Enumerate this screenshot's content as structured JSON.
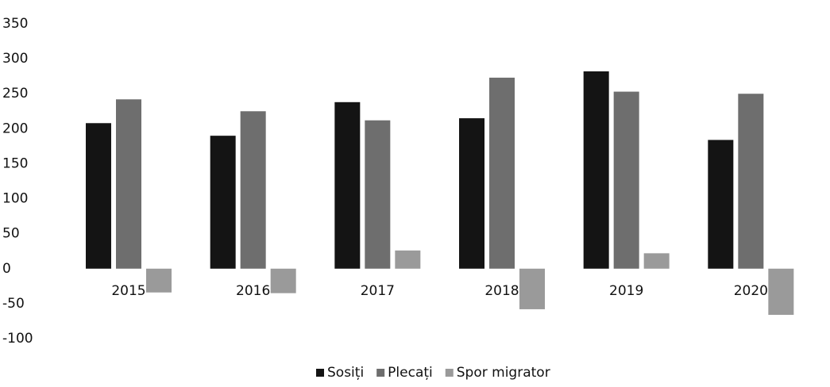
{
  "chart_data": {
    "type": "bar",
    "categories": [
      "2015",
      "2016",
      "2017",
      "2018",
      "2019",
      "2020"
    ],
    "series": [
      {
        "name": "Sosiți",
        "color": "#141414",
        "values": [
          208,
          190,
          238,
          215,
          282,
          184
        ]
      },
      {
        "name": "Plecați",
        "color": "#6e6e6e",
        "values": [
          242,
          225,
          212,
          273,
          253,
          250
        ]
      },
      {
        "name": "Spor migrator",
        "color": "#9a9a9a",
        "values": [
          -34,
          -35,
          26,
          -58,
          22,
          -66
        ]
      }
    ],
    "ylim": [
      -100,
      350
    ],
    "yticks": [
      -100,
      -50,
      0,
      50,
      100,
      150,
      200,
      250,
      300,
      350
    ],
    "grid": false,
    "legend": "bottom"
  }
}
